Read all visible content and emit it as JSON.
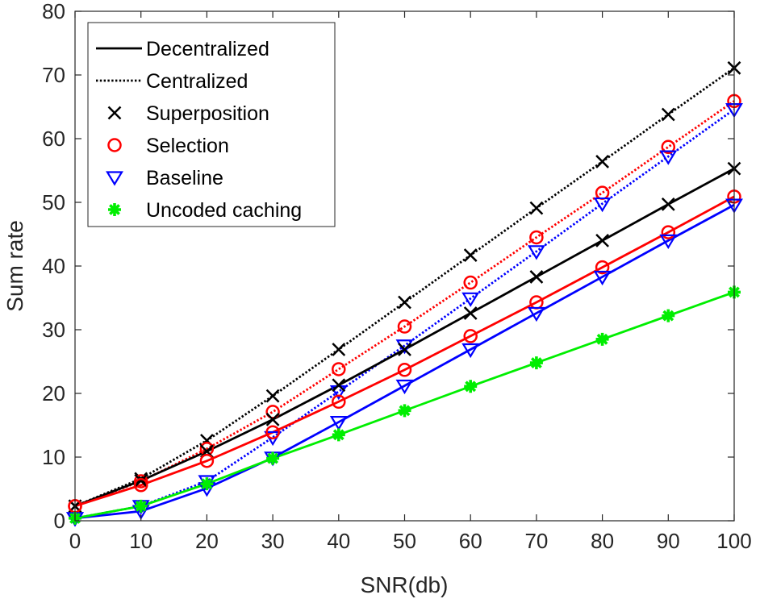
{
  "chart_data": {
    "type": "line",
    "title": "",
    "xlabel": "SNR(db)",
    "ylabel": "Sum rate",
    "xlim": [
      0,
      100
    ],
    "ylim": [
      0,
      80
    ],
    "xticks": [
      0,
      10,
      20,
      30,
      40,
      50,
      60,
      70,
      80,
      90,
      100
    ],
    "yticks": [
      0,
      10,
      20,
      30,
      40,
      50,
      60,
      70,
      80
    ],
    "grid": false,
    "legend_position": "top-left",
    "legend": [
      {
        "label": "Decentralized",
        "kind": "line",
        "style": "solid",
        "color": "#000000"
      },
      {
        "label": "Centralized",
        "kind": "line",
        "style": "dotted",
        "color": "#000000"
      },
      {
        "label": "Superposition",
        "kind": "marker",
        "marker": "x",
        "color": "#000000"
      },
      {
        "label": "Selection",
        "kind": "marker",
        "marker": "circle",
        "color": "#ff0000"
      },
      {
        "label": "Baseline",
        "kind": "marker",
        "marker": "triangle-down",
        "color": "#0000ff"
      },
      {
        "label": "Uncoded caching",
        "kind": "marker",
        "marker": "asterisk",
        "color": "#00ee00"
      }
    ],
    "x": [
      0,
      10,
      20,
      30,
      40,
      50,
      60,
      70,
      80,
      90,
      100
    ],
    "series": [
      {
        "name": "Centralized Superposition",
        "style": "dotted",
        "marker": "x",
        "color": "#000000",
        "values": [
          2.3,
          6.6,
          12.6,
          19.6,
          26.9,
          34.3,
          41.7,
          49.1,
          56.4,
          63.8,
          71.1
        ]
      },
      {
        "name": "Centralized Selection",
        "style": "dotted",
        "marker": "circle",
        "color": "#ff0000",
        "values": [
          2.3,
          6.2,
          11.3,
          17.1,
          23.8,
          30.5,
          37.4,
          44.5,
          51.5,
          58.7,
          65.9
        ]
      },
      {
        "name": "Centralized Baseline",
        "style": "dotted",
        "marker": "triangle-down",
        "color": "#0000ff",
        "values": [
          0.4,
          2.3,
          6.2,
          13.1,
          20.3,
          27.5,
          34.9,
          42.3,
          49.8,
          57.2,
          64.6
        ]
      },
      {
        "name": "Decentralized Superposition",
        "style": "solid",
        "marker": "x",
        "color": "#000000",
        "values": [
          2.3,
          6.3,
          10.9,
          15.9,
          21.3,
          26.9,
          32.6,
          38.3,
          44.0,
          49.7,
          55.3
        ]
      },
      {
        "name": "Decentralized Selection",
        "style": "solid",
        "marker": "circle",
        "color": "#ff0000",
        "values": [
          2.3,
          5.6,
          9.4,
          13.9,
          18.7,
          23.7,
          29.0,
          34.3,
          39.8,
          45.3,
          50.9
        ]
      },
      {
        "name": "Decentralized Baseline",
        "style": "solid",
        "marker": "triangle-down",
        "color": "#0000ff",
        "values": [
          0.4,
          1.5,
          5.1,
          9.9,
          15.5,
          21.2,
          26.9,
          32.6,
          38.3,
          44.0,
          49.6
        ]
      },
      {
        "name": "Uncoded caching",
        "style": "solid",
        "marker": "asterisk",
        "color": "#00ee00",
        "values": [
          0.4,
          2.3,
          5.8,
          9.8,
          13.5,
          17.3,
          21.1,
          24.8,
          28.5,
          32.2,
          35.9
        ]
      }
    ]
  }
}
